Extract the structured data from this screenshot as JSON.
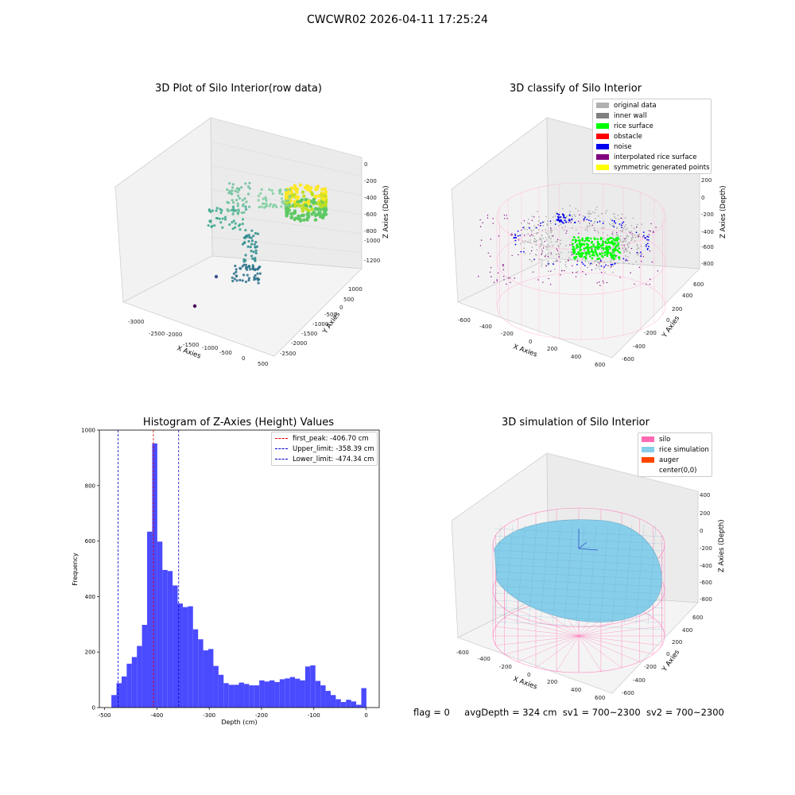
{
  "suptitle": "CWCWR02 2026-04-11 17:25:24",
  "colors": {
    "hist_bar": "#4a4aff",
    "first_peak": "#e00000",
    "limits": "#0000cc",
    "silo": "#ff69b4",
    "rice": "#87ceeb",
    "auger": "#ff4500",
    "inner_wall": "#808080",
    "rice_surface": "#00ff00",
    "noise": "#0000ee",
    "interp": "#800080",
    "symmetric": "#ffff00",
    "original": "#b0b0b0"
  },
  "plots": {
    "raw": {
      "title": "3D Plot of Silo Interior(row data)",
      "xlabel": "X Axies",
      "ylabel": "Y Axies",
      "zlabel": "Z Axies (Depth)",
      "x_ticks": [
        "-3000",
        "-2500",
        "-2000",
        "-1500",
        "-1000",
        "-500",
        "0",
        "500"
      ],
      "y_ticks": [
        "1000",
        "500",
        "0",
        "-500",
        "-1000",
        "-1500",
        "-2000",
        "-2500"
      ],
      "z_ticks": [
        "0",
        "-200",
        "-400",
        "-600",
        "-800",
        "-1000",
        "-1200"
      ]
    },
    "classify": {
      "title": "3D classify of Silo Interior",
      "xlabel": "X Axies",
      "ylabel": "Y Axies",
      "zlabel": "Z Axies (Depth)",
      "x_ticks": [
        "-600",
        "-400",
        "-200",
        "0",
        "200",
        "400",
        "600"
      ],
      "y_ticks": [
        "600",
        "400",
        "200",
        "0",
        "-200",
        "-400",
        "-600"
      ],
      "z_ticks": [
        "400",
        "200",
        "0",
        "-200",
        "-400",
        "-600",
        "-800"
      ],
      "legend": [
        {
          "label": "original data",
          "color": "#b0b0b0"
        },
        {
          "label": "inner wall",
          "color": "#808080"
        },
        {
          "label": "rice surface",
          "color": "#00ff00"
        },
        {
          "label": "obstacle",
          "color": "#ff0000"
        },
        {
          "label": "noise",
          "color": "#0000ee"
        },
        {
          "label": "interpolated rice surface",
          "color": "#800080"
        },
        {
          "label": "symmetric generated points",
          "color": "#ffff00"
        }
      ]
    },
    "simulation": {
      "title": "3D simulation of Silo Interior",
      "xlabel": "X Axies",
      "ylabel": "Y Axies",
      "zlabel": "Z Axies (Depth)",
      "x_ticks": [
        "-600",
        "-400",
        "-200",
        "0",
        "200",
        "400",
        "600"
      ],
      "y_ticks": [
        "600",
        "400",
        "200",
        "0",
        "-200",
        "-400",
        "-600"
      ],
      "z_ticks": [
        "400",
        "200",
        "0",
        "-200",
        "-400",
        "-600",
        "-800"
      ],
      "legend": [
        {
          "label": "silo",
          "color": "#ff69b4"
        },
        {
          "label": "rice simulation",
          "color": "#87ceeb"
        },
        {
          "label": "auger",
          "color": "#ff4500"
        },
        {
          "label": "center(0,0)",
          "color": "#ffffff"
        }
      ]
    }
  },
  "footer": {
    "flag": "flag = 0",
    "avg": "avgDepth = 324 cm",
    "sv1": "sv1 = 700~2300",
    "sv2": "sv2 = 700~2300"
  },
  "chart_data": [
    {
      "type": "bar",
      "title": "Histogram of Z-Axies (Height) Values",
      "xlabel": "Depth (cm)",
      "ylabel": "Frequency",
      "xlim": [
        -510,
        25
      ],
      "ylim": [
        0,
        1000
      ],
      "x_ticks": [
        -500,
        -400,
        -300,
        -200,
        -100,
        0
      ],
      "y_ticks": [
        0,
        200,
        400,
        600,
        800,
        1000
      ],
      "bin_start": -487,
      "bin_width": 9.75,
      "values": [
        45,
        88,
        112,
        158,
        182,
        222,
        298,
        634,
        952,
        598,
        496,
        492,
        440,
        375,
        362,
        365,
        282,
        246,
        206,
        211,
        150,
        118,
        88,
        82,
        82,
        90,
        85,
        80,
        80,
        98,
        94,
        98,
        92,
        102,
        105,
        110,
        104,
        98,
        148,
        152,
        96,
        80,
        60,
        45,
        30,
        20,
        28,
        22,
        10,
        70
      ],
      "lines": [
        {
          "label": "first_peak: -406.70 cm",
          "x": -406.7,
          "style": "red"
        },
        {
          "label": "Upper_limit: -358.39 cm",
          "x": -358.39,
          "style": "blue"
        },
        {
          "label": "Lower_limit: -474.34 cm",
          "x": -474.34,
          "style": "blue"
        }
      ]
    }
  ]
}
